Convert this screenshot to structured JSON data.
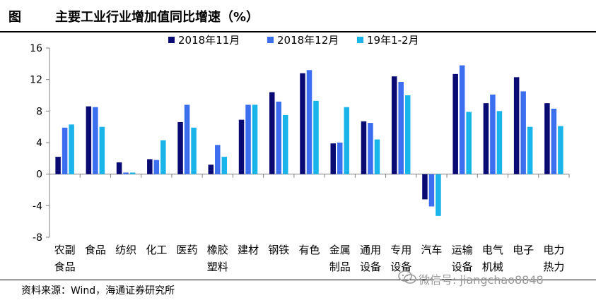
{
  "figure": {
    "label": "图",
    "title": "主要工业行业增加值同比增速（%）",
    "source": "资料来源：Wind，海通证券研究所",
    "watermark": "微信号: jiangchao8848"
  },
  "chart_data": {
    "type": "bar",
    "title": "主要工业行业增加值同比增速（%）",
    "xlabel": "",
    "ylabel": "",
    "ylim": [
      -8,
      16
    ],
    "yticks": [
      16,
      12,
      8,
      4,
      0,
      -4,
      -8
    ],
    "grid": false,
    "legend_position": "top",
    "categories": [
      [
        "农副",
        "食品"
      ],
      [
        "食品"
      ],
      [
        "纺织"
      ],
      [
        "化工"
      ],
      [
        "医药"
      ],
      [
        "橡胶",
        "塑料"
      ],
      [
        "建材"
      ],
      [
        "钢铁"
      ],
      [
        "有色"
      ],
      [
        "金属",
        "制品"
      ],
      [
        "通用",
        "设备"
      ],
      [
        "专用",
        "设备"
      ],
      [
        "汽车"
      ],
      [
        "运输",
        "设备"
      ],
      [
        "电气",
        "机械"
      ],
      [
        "电子"
      ],
      [
        "电力",
        "热力"
      ]
    ],
    "series": [
      {
        "name": "2018年11月",
        "color": "#0a0a73",
        "values": [
          2.2,
          8.6,
          1.5,
          1.9,
          6.6,
          1.2,
          6.9,
          10.4,
          12.8,
          3.9,
          6.7,
          12.4,
          -3.2,
          12.7,
          9.0,
          12.3,
          9.0
        ]
      },
      {
        "name": "2018年12月",
        "color": "#3c6ef0",
        "values": [
          5.9,
          8.5,
          0.2,
          1.8,
          8.8,
          3.7,
          8.8,
          9.2,
          13.2,
          4.0,
          6.5,
          11.7,
          -4.1,
          13.8,
          10.1,
          10.5,
          8.3
        ]
      },
      {
        "name": "19年1-2月",
        "color": "#19b4ea",
        "values": [
          6.3,
          6.0,
          0.2,
          4.3,
          5.9,
          2.2,
          8.8,
          7.5,
          9.3,
          8.5,
          4.4,
          10.0,
          -5.3,
          7.9,
          8.0,
          6.0,
          6.1
        ]
      }
    ]
  }
}
